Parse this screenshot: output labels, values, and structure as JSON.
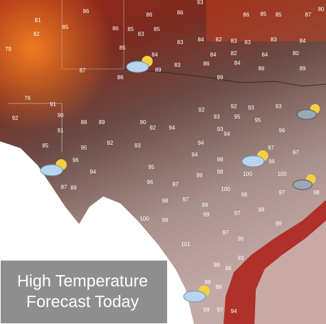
{
  "title_lines": [
    "High Temperature",
    "Forecast Today"
  ],
  "temperatures": [
    86,
    86,
    86,
    93,
    86,
    85,
    85,
    87,
    80,
    81,
    82,
    79,
    85,
    86,
    85,
    85,
    83,
    85,
    84,
    83,
    84,
    82,
    83,
    83,
    83,
    84,
    82,
    84,
    84,
    80,
    83,
    86,
    84,
    87,
    86,
    89,
    89,
    86,
    89,
    76,
    91,
    90,
    92,
    91,
    88,
    89,
    90,
    92,
    94,
    92,
    93,
    92,
    93,
    93,
    95,
    93,
    95,
    96,
    93,
    85,
    95,
    92,
    93,
    94,
    94,
    97,
    96,
    95,
    94,
    98,
    96,
    97,
    87,
    88,
    94,
    96,
    97,
    99,
    98,
    100,
    100,
    98,
    97,
    99,
    100,
    98,
    97,
    98,
    100,
    99,
    99,
    97,
    98,
    99,
    101,
    97,
    96,
    93,
    99,
    96,
    98,
    99,
    97,
    99,
    94
  ]
}
